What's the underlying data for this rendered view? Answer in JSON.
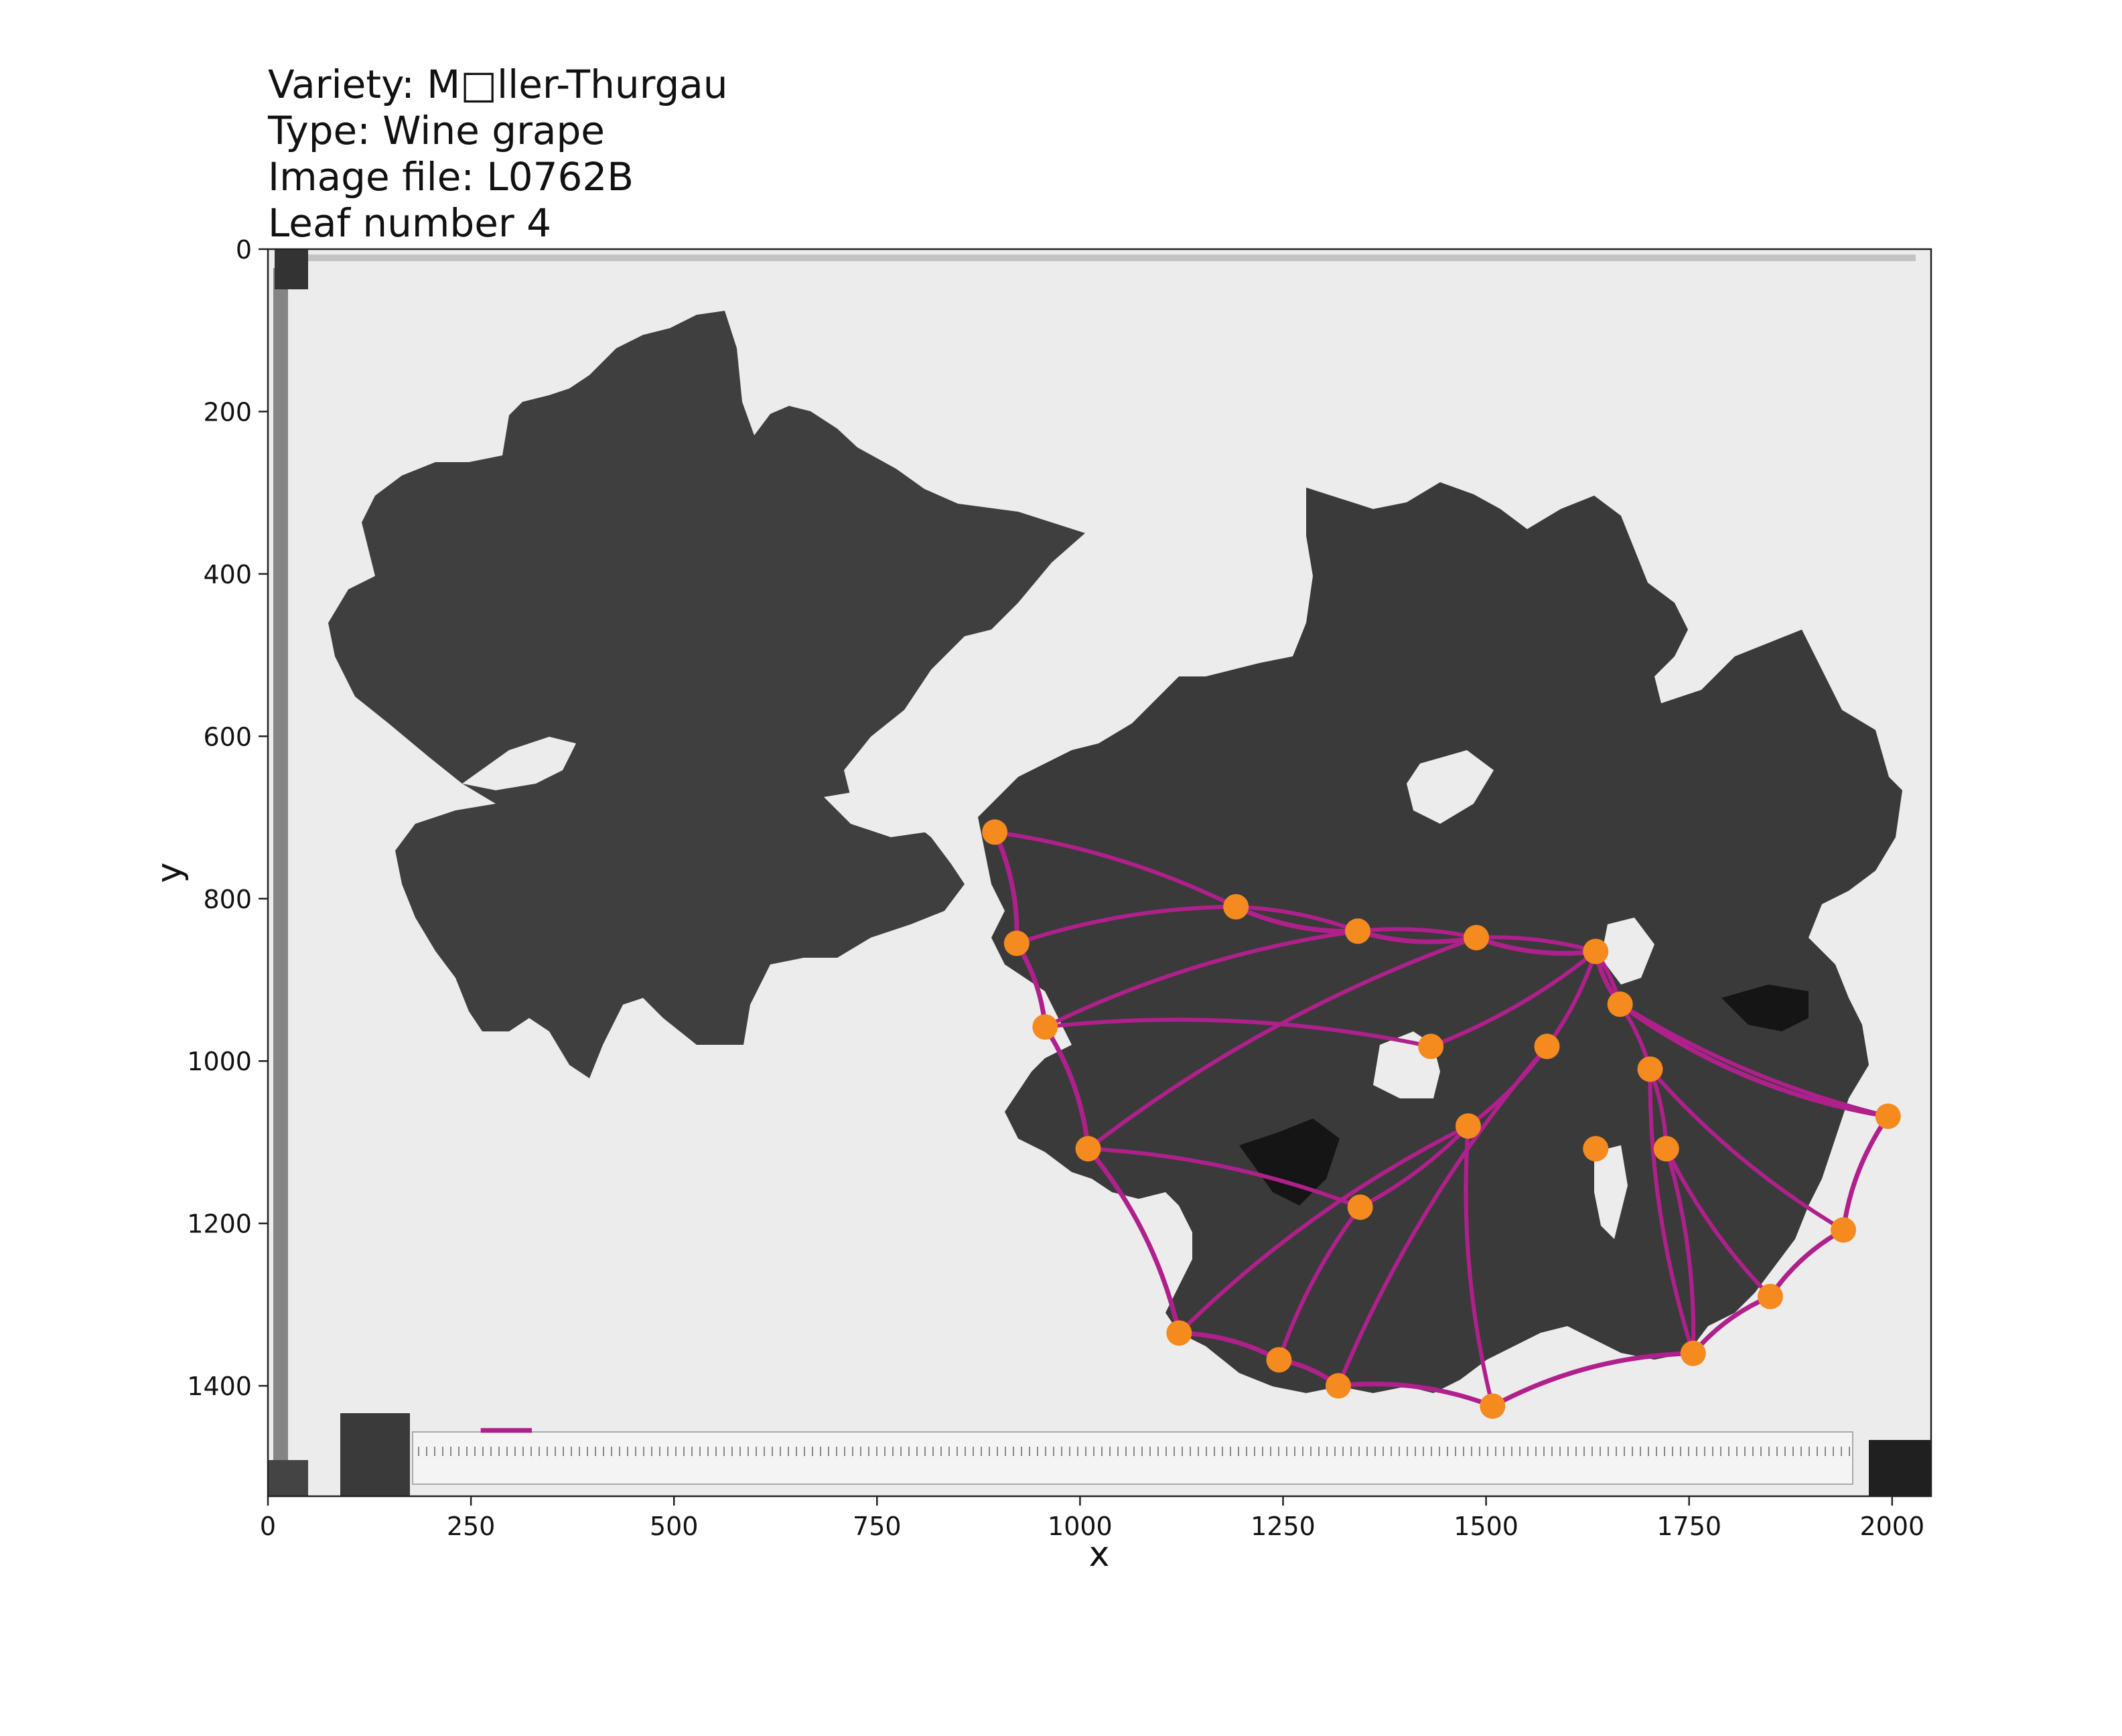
{
  "chart_data": {
    "type": "scatter",
    "title_lines": [
      "Variety: M□ller-Thurgau",
      "Type: Wine grape",
      "Image file: L0762B",
      "Leaf number 4"
    ],
    "xlabel": "x",
    "ylabel": "y",
    "xlim": [
      0,
      2048
    ],
    "ylim": [
      1536,
      0
    ],
    "x_ticks": [
      0,
      250,
      500,
      750,
      1000,
      1250,
      1500,
      1750,
      2000
    ],
    "y_ticks": [
      0,
      200,
      400,
      600,
      800,
      1000,
      1200,
      1400
    ],
    "grid": false,
    "legend": "none",
    "colors": {
      "landmark": "#f58a1f",
      "outline": "#b0208c"
    },
    "landmarks": [
      {
        "x": 895,
        "y": 718
      },
      {
        "x": 1192,
        "y": 810
      },
      {
        "x": 1342,
        "y": 840
      },
      {
        "x": 1488,
        "y": 848
      },
      {
        "x": 1635,
        "y": 865
      },
      {
        "x": 922,
        "y": 855
      },
      {
        "x": 957,
        "y": 958
      },
      {
        "x": 1432,
        "y": 982
      },
      {
        "x": 1575,
        "y": 982
      },
      {
        "x": 1665,
        "y": 930
      },
      {
        "x": 1702,
        "y": 1010
      },
      {
        "x": 1995,
        "y": 1068
      },
      {
        "x": 1010,
        "y": 1108
      },
      {
        "x": 1478,
        "y": 1080
      },
      {
        "x": 1635,
        "y": 1108
      },
      {
        "x": 1722,
        "y": 1108
      },
      {
        "x": 1345,
        "y": 1180
      },
      {
        "x": 1940,
        "y": 1208
      },
      {
        "x": 1850,
        "y": 1290
      },
      {
        "x": 1122,
        "y": 1335
      },
      {
        "x": 1245,
        "y": 1368
      },
      {
        "x": 1755,
        "y": 1360
      },
      {
        "x": 1318,
        "y": 1400
      },
      {
        "x": 1508,
        "y": 1425
      }
    ],
    "scale_bar": {
      "x": [
        262,
        325
      ],
      "y": 1455
    }
  }
}
